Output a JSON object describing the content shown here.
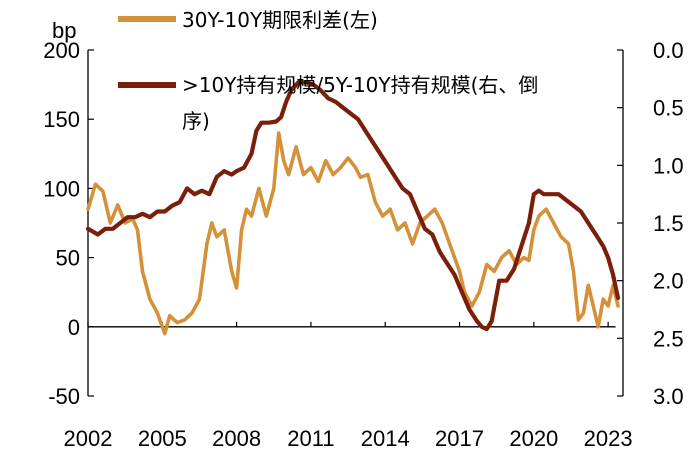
{
  "chart_data": {
    "type": "line",
    "unit_label": "bp",
    "x_ticks": [
      "2002",
      "2005",
      "2008",
      "2011",
      "2014",
      "2017",
      "2020",
      "2023"
    ],
    "xlim": [
      2002,
      2023.6
    ],
    "left_axis": {
      "ylim": [
        -50,
        200
      ],
      "ticks": [
        "200",
        "150",
        "100",
        "50",
        "0",
        "-50"
      ],
      "tick_values": [
        200,
        150,
        100,
        50,
        0,
        -50
      ]
    },
    "right_axis": {
      "inverted": true,
      "ylim": [
        0.0,
        3.0
      ],
      "ticks": [
        "0.0",
        "0.5",
        "1.0",
        "1.5",
        "2.0",
        "2.5",
        "3.0"
      ],
      "tick_values": [
        0.0,
        0.5,
        1.0,
        1.5,
        2.0,
        2.5,
        3.0
      ]
    },
    "legend_position": "top-left",
    "series": [
      {
        "name": "30Y-10Y期限利差(左)",
        "axis": "left",
        "color": "#D4913A",
        "x": [
          2002.0,
          2002.3,
          2002.6,
          2002.9,
          2003.2,
          2003.5,
          2003.8,
          2004.0,
          2004.2,
          2004.5,
          2004.8,
          2005.0,
          2005.1,
          2005.3,
          2005.6,
          2005.9,
          2006.2,
          2006.5,
          2006.8,
          2007.0,
          2007.2,
          2007.5,
          2007.8,
          2008.0,
          2008.2,
          2008.4,
          2008.6,
          2008.9,
          2009.2,
          2009.5,
          2009.7,
          2009.9,
          2010.1,
          2010.4,
          2010.7,
          2011.0,
          2011.3,
          2011.6,
          2011.9,
          2012.2,
          2012.5,
          2012.8,
          2013.0,
          2013.3,
          2013.6,
          2013.9,
          2014.2,
          2014.5,
          2014.8,
          2015.1,
          2015.4,
          2015.7,
          2016.0,
          2016.3,
          2016.6,
          2016.9,
          2017.0,
          2017.2,
          2017.5,
          2017.8,
          2018.1,
          2018.4,
          2018.7,
          2019.0,
          2019.3,
          2019.6,
          2019.8,
          2020.0,
          2020.2,
          2020.5,
          2020.8,
          2021.1,
          2021.4,
          2021.6,
          2021.8,
          2022.0,
          2022.2,
          2022.4,
          2022.6,
          2022.8,
          2023.0,
          2023.2,
          2023.4
        ],
        "values": [
          85,
          103,
          98,
          75,
          88,
          75,
          78,
          70,
          40,
          20,
          10,
          0,
          -5,
          8,
          3,
          5,
          10,
          20,
          60,
          75,
          65,
          70,
          40,
          28,
          70,
          85,
          80,
          100,
          80,
          100,
          140,
          120,
          110,
          130,
          110,
          115,
          105,
          120,
          110,
          115,
          122,
          115,
          108,
          110,
          90,
          80,
          85,
          70,
          75,
          60,
          75,
          80,
          85,
          75,
          60,
          45,
          40,
          25,
          15,
          25,
          45,
          40,
          50,
          55,
          45,
          50,
          48,
          70,
          80,
          85,
          75,
          65,
          60,
          40,
          5,
          10,
          30,
          15,
          0,
          20,
          15,
          30,
          15
        ]
      },
      {
        "name": ">10Y持有规模/5Y-10Y持有规模(右、倒序)",
        "axis": "right",
        "color": "#7A1F0A",
        "x": [
          2002.0,
          2002.4,
          2002.7,
          2003.0,
          2003.3,
          2003.6,
          2003.9,
          2004.2,
          2004.5,
          2004.8,
          2005.1,
          2005.4,
          2005.7,
          2006.0,
          2006.3,
          2006.6,
          2006.9,
          2007.2,
          2007.5,
          2007.8,
          2008.0,
          2008.3,
          2008.6,
          2008.8,
          2009.0,
          2009.3,
          2009.6,
          2009.8,
          2010.0,
          2010.2,
          2010.5,
          2010.8,
          2011.1,
          2011.4,
          2011.7,
          2012.0,
          2012.3,
          2012.6,
          2012.9,
          2013.2,
          2013.5,
          2013.8,
          2014.1,
          2014.4,
          2014.7,
          2015.0,
          2015.3,
          2015.6,
          2015.9,
          2016.2,
          2016.5,
          2016.8,
          2017.1,
          2017.4,
          2017.7,
          2017.9,
          2018.1,
          2018.3,
          2018.6,
          2018.9,
          2019.2,
          2019.5,
          2019.8,
          2020.0,
          2020.2,
          2020.4,
          2020.7,
          2021.0,
          2021.3,
          2021.6,
          2021.9,
          2022.2,
          2022.5,
          2022.8,
          2023.0,
          2023.2,
          2023.4
        ],
        "values": [
          1.55,
          1.6,
          1.55,
          1.55,
          1.5,
          1.45,
          1.45,
          1.42,
          1.45,
          1.4,
          1.4,
          1.35,
          1.32,
          1.2,
          1.25,
          1.22,
          1.25,
          1.1,
          1.05,
          1.08,
          1.05,
          1.02,
          0.9,
          0.7,
          0.63,
          0.63,
          0.62,
          0.58,
          0.45,
          0.35,
          0.28,
          0.28,
          0.3,
          0.35,
          0.42,
          0.45,
          0.5,
          0.55,
          0.6,
          0.7,
          0.8,
          0.9,
          1.0,
          1.1,
          1.2,
          1.25,
          1.4,
          1.55,
          1.6,
          1.75,
          1.85,
          1.95,
          2.1,
          2.25,
          2.35,
          2.4,
          2.42,
          2.35,
          2.0,
          2.0,
          1.9,
          1.7,
          1.5,
          1.25,
          1.22,
          1.25,
          1.25,
          1.25,
          1.3,
          1.35,
          1.4,
          1.5,
          1.6,
          1.7,
          1.8,
          1.95,
          2.15
        ]
      }
    ]
  }
}
